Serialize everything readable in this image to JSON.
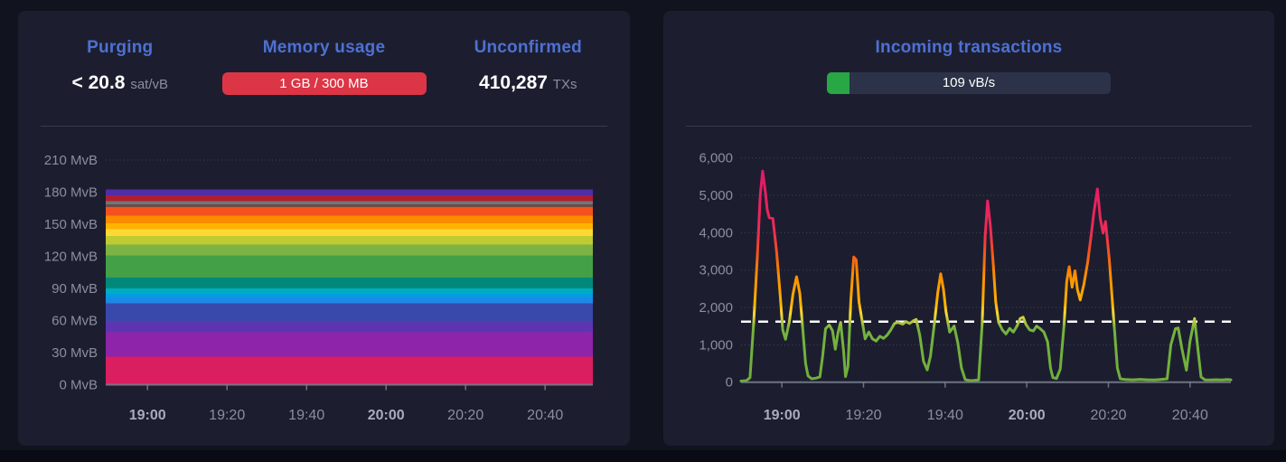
{
  "left_panel": {
    "stats": [
      {
        "label": "Purging",
        "value": "< 20.8",
        "unit": "sat/vB"
      },
      {
        "label": "Memory usage",
        "badge": "1 GB / 300 MB"
      },
      {
        "label": "Unconfirmed",
        "value": "410,287",
        "unit": "TXs"
      }
    ]
  },
  "right_panel": {
    "title": "Incoming transactions",
    "progress": {
      "label": "109 vB/s",
      "fill_percent": 8
    }
  },
  "colors": {
    "accent_blue": "#4e70d2",
    "badge_red": "#dc3545",
    "progress_green": "#28a745",
    "progress_track": "#2c3247",
    "panel_bg": "#1c1e30",
    "page_bg": "#11131f",
    "threshold_white": "#ffffff"
  },
  "chart_data": [
    {
      "type": "area",
      "stacked": true,
      "title": "",
      "grid": "dotted",
      "y_max": 210,
      "y_ticks": [
        {
          "v": 0,
          "label": "0 MvB"
        },
        {
          "v": 30,
          "label": "30 MvB"
        },
        {
          "v": 60,
          "label": "60 MvB"
        },
        {
          "v": 90,
          "label": "90 MvB"
        },
        {
          "v": 120,
          "label": "120 MvB"
        },
        {
          "v": 150,
          "label": "150 MvB"
        },
        {
          "v": 180,
          "label": "180 MvB"
        },
        {
          "v": 210,
          "label": "210 MvB"
        }
      ],
      "x_axis_minutes": {
        "total": 122.5,
        "first_tick": 10.5,
        "interval": 20
      },
      "x_ticks": [
        {
          "label": "19:00",
          "bold": true
        },
        {
          "label": "19:20",
          "bold": false
        },
        {
          "label": "19:40",
          "bold": false
        },
        {
          "label": "20:00",
          "bold": true
        },
        {
          "label": "20:20",
          "bold": false
        },
        {
          "label": "20:40",
          "bold": false
        }
      ],
      "bands_bottom_to_top": [
        {
          "color": "#db1e5f",
          "thickness": 26
        },
        {
          "color": "#8e24aa",
          "thickness": 23
        },
        {
          "color": "#5e35b1",
          "thickness": 10
        },
        {
          "color": "#3949ab",
          "thickness": 17
        },
        {
          "color": "#1e88e5",
          "thickness": 5
        },
        {
          "color": "#039be5",
          "thickness": 4
        },
        {
          "color": "#00acc1",
          "thickness": 5
        },
        {
          "color": "#00897b",
          "thickness": 10
        },
        {
          "color": "#43a047",
          "thickness": 21
        },
        {
          "color": "#7cb342",
          "thickness": 10
        },
        {
          "color": "#c0ca33",
          "thickness": 8
        },
        {
          "color": "#fdd835",
          "thickness": 6.5
        },
        {
          "color": "#ffb300",
          "thickness": 5.5
        },
        {
          "color": "#fb8c00",
          "thickness": 7
        },
        {
          "color": "#f4511e",
          "thickness": 8
        },
        {
          "color": "#6d4c41",
          "thickness": 2.5
        },
        {
          "color": "#757575",
          "thickness": 3
        },
        {
          "color": "#b01e32",
          "thickness": 5.5
        },
        {
          "color": "#512da8",
          "thickness": 5.5
        }
      ]
    },
    {
      "type": "line",
      "title": "Incoming transactions",
      "grid": "dotted",
      "y_max": 6000,
      "y_ticks": [
        {
          "v": 0,
          "label": "0"
        },
        {
          "v": 1000,
          "label": "1,000"
        },
        {
          "v": 2000,
          "label": "2,000"
        },
        {
          "v": 3000,
          "label": "3,000"
        },
        {
          "v": 4000,
          "label": "4,000"
        },
        {
          "v": 5000,
          "label": "5,000"
        },
        {
          "v": 6000,
          "label": "6,000"
        }
      ],
      "x_axis_minutes": {
        "total": 120,
        "first_tick": 10,
        "interval": 20
      },
      "x_ticks": [
        {
          "label": "19:00",
          "bold": true
        },
        {
          "label": "19:20",
          "bold": false
        },
        {
          "label": "19:40",
          "bold": false
        },
        {
          "label": "20:00",
          "bold": true
        },
        {
          "label": "20:20",
          "bold": false
        },
        {
          "label": "20:40",
          "bold": false
        }
      ],
      "threshold": 1620,
      "line_gradient": [
        {
          "v": 6000,
          "color": "#e0146e"
        },
        {
          "v": 4000,
          "color": "#ee2b55"
        },
        {
          "v": 3500,
          "color": "#f4511e"
        },
        {
          "v": 2900,
          "color": "#fb8c00"
        },
        {
          "v": 2100,
          "color": "#ffb300"
        },
        {
          "v": 1850,
          "color": "#fdd835"
        },
        {
          "v": 1600,
          "color": "#b0c43c"
        },
        {
          "v": 1450,
          "color": "#76b33f"
        },
        {
          "v": 0,
          "color": "#6fae3b"
        }
      ],
      "points": [
        [
          0,
          30
        ],
        [
          1.3,
          40
        ],
        [
          2.2,
          120
        ],
        [
          3.1,
          1600
        ],
        [
          4,
          3400
        ],
        [
          4.7,
          5000
        ],
        [
          5.3,
          5650
        ],
        [
          6,
          5050
        ],
        [
          6.4,
          4620
        ],
        [
          6.9,
          4400
        ],
        [
          7.8,
          4380
        ],
        [
          8.7,
          3500
        ],
        [
          9.6,
          2300
        ],
        [
          10.2,
          1400
        ],
        [
          10.9,
          1150
        ],
        [
          11.8,
          1600
        ],
        [
          12.7,
          2350
        ],
        [
          13.6,
          2820
        ],
        [
          14.4,
          2380
        ],
        [
          15.1,
          1450
        ],
        [
          15.8,
          500
        ],
        [
          16.4,
          170
        ],
        [
          17.3,
          90
        ],
        [
          18.4,
          110
        ],
        [
          19.3,
          140
        ],
        [
          20,
          700
        ],
        [
          20.7,
          1430
        ],
        [
          21.6,
          1530
        ],
        [
          22.4,
          1380
        ],
        [
          23.1,
          880
        ],
        [
          23.8,
          1350
        ],
        [
          24.4,
          1600
        ],
        [
          25.1,
          850
        ],
        [
          25.6,
          150
        ],
        [
          26.2,
          420
        ],
        [
          26.9,
          2200
        ],
        [
          27.6,
          3350
        ],
        [
          28.2,
          3270
        ],
        [
          28.9,
          2150
        ],
        [
          29.6,
          1680
        ],
        [
          30.4,
          1160
        ],
        [
          31.3,
          1340
        ],
        [
          32.2,
          1160
        ],
        [
          33.1,
          1100
        ],
        [
          34,
          1230
        ],
        [
          34.9,
          1170
        ],
        [
          35.8,
          1260
        ],
        [
          36.7,
          1400
        ],
        [
          37.6,
          1570
        ],
        [
          38.4,
          1600
        ],
        [
          39.6,
          1550
        ],
        [
          40.4,
          1620
        ],
        [
          41.3,
          1570
        ],
        [
          42.2,
          1640
        ],
        [
          42.9,
          1680
        ],
        [
          43.8,
          1250
        ],
        [
          44.7,
          560
        ],
        [
          45.6,
          330
        ],
        [
          46.4,
          700
        ],
        [
          47.3,
          1500
        ],
        [
          48.2,
          2400
        ],
        [
          48.9,
          2900
        ],
        [
          49.6,
          2480
        ],
        [
          50.2,
          1900
        ],
        [
          51.1,
          1340
        ],
        [
          52.2,
          1500
        ],
        [
          53.1,
          1060
        ],
        [
          54,
          380
        ],
        [
          54.9,
          70
        ],
        [
          56,
          40
        ],
        [
          57.1,
          45
        ],
        [
          58.2,
          60
        ],
        [
          59.1,
          1600
        ],
        [
          59.8,
          3900
        ],
        [
          60.4,
          4850
        ],
        [
          61.1,
          4150
        ],
        [
          61.8,
          3150
        ],
        [
          62.4,
          2150
        ],
        [
          63.1,
          1600
        ],
        [
          64,
          1400
        ],
        [
          64.9,
          1290
        ],
        [
          65.8,
          1440
        ],
        [
          66.7,
          1340
        ],
        [
          67.6,
          1500
        ],
        [
          68.4,
          1700
        ],
        [
          69.1,
          1740
        ],
        [
          69.8,
          1540
        ],
        [
          70.7,
          1400
        ],
        [
          71.6,
          1370
        ],
        [
          72.4,
          1500
        ],
        [
          73.3,
          1430
        ],
        [
          74.2,
          1340
        ],
        [
          75.1,
          1080
        ],
        [
          75.8,
          380
        ],
        [
          76.4,
          120
        ],
        [
          77.3,
          100
        ],
        [
          78.2,
          350
        ],
        [
          79.1,
          1500
        ],
        [
          79.8,
          2700
        ],
        [
          80.4,
          3090
        ],
        [
          81.1,
          2540
        ],
        [
          81.8,
          2980
        ],
        [
          82.4,
          2480
        ],
        [
          83.1,
          2200
        ],
        [
          84,
          2620
        ],
        [
          84.9,
          3200
        ],
        [
          85.8,
          3950
        ],
        [
          86.4,
          4500
        ],
        [
          87.3,
          5170
        ],
        [
          88,
          4380
        ],
        [
          88.7,
          3990
        ],
        [
          89.3,
          4300
        ],
        [
          90.2,
          3300
        ],
        [
          90.9,
          2250
        ],
        [
          91.6,
          1250
        ],
        [
          92.2,
          380
        ],
        [
          92.9,
          90
        ],
        [
          94.2,
          70
        ],
        [
          96,
          62
        ],
        [
          97.8,
          74
        ],
        [
          99.6,
          64
        ],
        [
          101.3,
          60
        ],
        [
          102.7,
          72
        ],
        [
          104.4,
          90
        ],
        [
          105.3,
          1000
        ],
        [
          106.4,
          1430
        ],
        [
          107.1,
          1450
        ],
        [
          108,
          900
        ],
        [
          109.1,
          320
        ],
        [
          110,
          1100
        ],
        [
          111.1,
          1700
        ],
        [
          112,
          800
        ],
        [
          112.7,
          140
        ],
        [
          113.6,
          62
        ],
        [
          115.1,
          58
        ],
        [
          116.4,
          66
        ],
        [
          117.8,
          58
        ],
        [
          119.1,
          70
        ],
        [
          120,
          62
        ]
      ]
    }
  ]
}
